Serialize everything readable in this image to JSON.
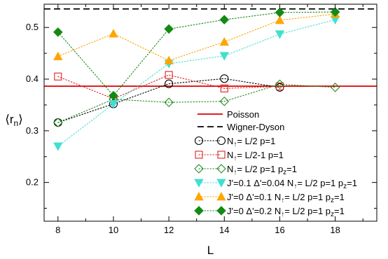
{
  "chart_data": {
    "type": "scatter",
    "xlabel": "L",
    "ylabel": "⟨r",
    "ylabel_sub": "n",
    "ylabel_close": "⟩",
    "xlim": [
      7.5,
      19.5
    ],
    "ylim": [
      0.125,
      0.545
    ],
    "xticks": [
      8,
      10,
      12,
      14,
      16,
      18
    ],
    "yticks": [
      0.2,
      0.3,
      0.4,
      0.5
    ],
    "ytick_labels": [
      "0.2",
      "0.3",
      "0.4",
      "0.5"
    ],
    "grid": false,
    "legend_position": "bottom-right",
    "reference_lines": [
      {
        "name": "Poisson",
        "y": 0.3863,
        "color": "#dd0000",
        "dash": "solid"
      },
      {
        "name": "Wigner-Dyson",
        "y": 0.5359,
        "color": "#000000",
        "dash": "dashed"
      }
    ],
    "series": [
      {
        "key": "s1",
        "name": "N",
        "name_tail": "= L/2 p=1",
        "marker": "circle-open",
        "color": "#000000",
        "x": [
          8,
          10,
          12,
          14,
          16
        ],
        "y": [
          0.316,
          0.352,
          0.391,
          0.401,
          0.384
        ]
      },
      {
        "key": "s2",
        "name": "N",
        "name_tail": "= L/2-1 p=1",
        "marker": "square-open",
        "color": "#dd2222",
        "x": [
          8,
          10,
          12,
          14,
          16
        ],
        "y": [
          0.405,
          0.362,
          0.408,
          0.382,
          0.386
        ]
      },
      {
        "key": "s3",
        "name": "N",
        "name_tail": "= L/2 p=1 p",
        "name_sub": "z",
        "name_end": "=1",
        "marker": "diamond-open",
        "color": "#228b22",
        "x": [
          8,
          10,
          12,
          14,
          16,
          18
        ],
        "y": [
          0.316,
          0.361,
          0.355,
          0.357,
          0.39,
          0.384
        ]
      },
      {
        "key": "s4",
        "name": "J'=0.1 Δ'=0.04 N",
        "name_tail": "= L/2 p=1 p",
        "name_sub": "z",
        "name_end": "=1",
        "marker": "triangle-down",
        "color": "#40e0d0",
        "x": [
          8,
          10,
          12,
          14,
          16,
          18
        ],
        "y": [
          0.27,
          0.352,
          0.43,
          0.445,
          0.487,
          0.515
        ]
      },
      {
        "key": "s5",
        "name": "J'=0 Δ'=0.1 N",
        "name_tail": "= L/2 p=1 p",
        "name_sub": "z",
        "name_end": "=1",
        "marker": "triangle-up",
        "color": "#ffa500",
        "x": [
          8,
          10,
          12,
          14,
          16,
          18
        ],
        "y": [
          0.444,
          0.488,
          0.436,
          0.472,
          0.514,
          0.526
        ]
      },
      {
        "key": "s6",
        "name": "J'=0 Δ'=0.2 N",
        "name_tail": "= L/2 p=1 p",
        "name_sub": "z",
        "name_end": "=1",
        "marker": "diamond-filled",
        "color": "#138a13",
        "x": [
          8,
          10,
          12,
          14,
          16,
          18
        ],
        "y": [
          0.491,
          0.368,
          0.497,
          0.515,
          0.529,
          0.53
        ]
      }
    ]
  }
}
